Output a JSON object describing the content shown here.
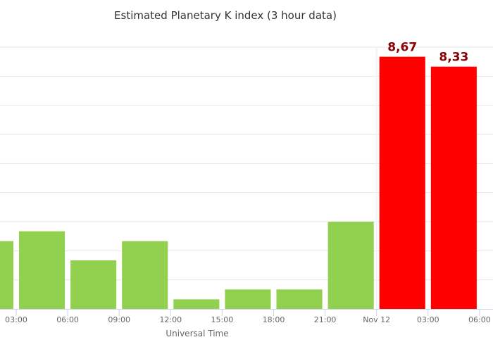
{
  "chart_data": {
    "type": "bar",
    "title": "Estimated Planetary K index (3 hour data)",
    "xlabel": "Universal Time",
    "ylabel": "",
    "ylim": [
      0,
      9
    ],
    "grid": true,
    "x_tick_labels": [
      "03:00",
      "06:00",
      "09:00",
      "12:00",
      "15:00",
      "18:00",
      "21:00",
      "Nov 12",
      "03:00",
      "06:00"
    ],
    "categories": [
      "00:00",
      "03:00",
      "06:00",
      "09:00",
      "12:00",
      "15:00",
      "18:00",
      "21:00",
      "Nov 12 00:00",
      "Nov 12 03:00"
    ],
    "values": [
      2.33,
      2.67,
      1.67,
      2.33,
      0.33,
      0.67,
      0.67,
      3.0,
      8.67,
      8.33
    ],
    "data_labels": [
      "",
      "",
      "",
      "",
      "",
      "",
      "",
      "",
      "8,67",
      "8,33"
    ],
    "colors": {
      "quiet": "#92d050",
      "storm": "#ff0000",
      "label": "#8b0000",
      "grid": "#e6e6e6",
      "axis": "#ccd6eb"
    },
    "storm_threshold": 5
  }
}
